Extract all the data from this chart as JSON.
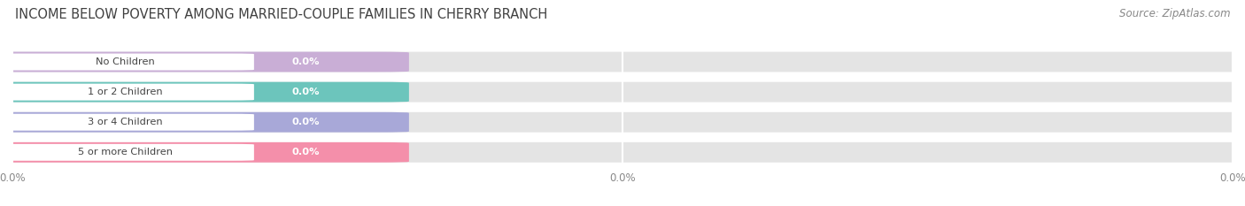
{
  "title": "INCOME BELOW POVERTY AMONG MARRIED-COUPLE FAMILIES IN CHERRY BRANCH",
  "source": "Source: ZipAtlas.com",
  "categories": [
    "No Children",
    "1 or 2 Children",
    "3 or 4 Children",
    "5 or more Children"
  ],
  "values": [
    0.0,
    0.0,
    0.0,
    0.0
  ],
  "bar_colors": [
    "#c9aed6",
    "#6cc5bc",
    "#a8a8d8",
    "#f48faa"
  ],
  "background_color": "#ffffff",
  "bar_bg_color": "#e4e4e4",
  "title_fontsize": 10.5,
  "source_fontsize": 8.5,
  "xtick_labels": [
    "0.0%",
    "0.0%",
    "0.0%"
  ]
}
